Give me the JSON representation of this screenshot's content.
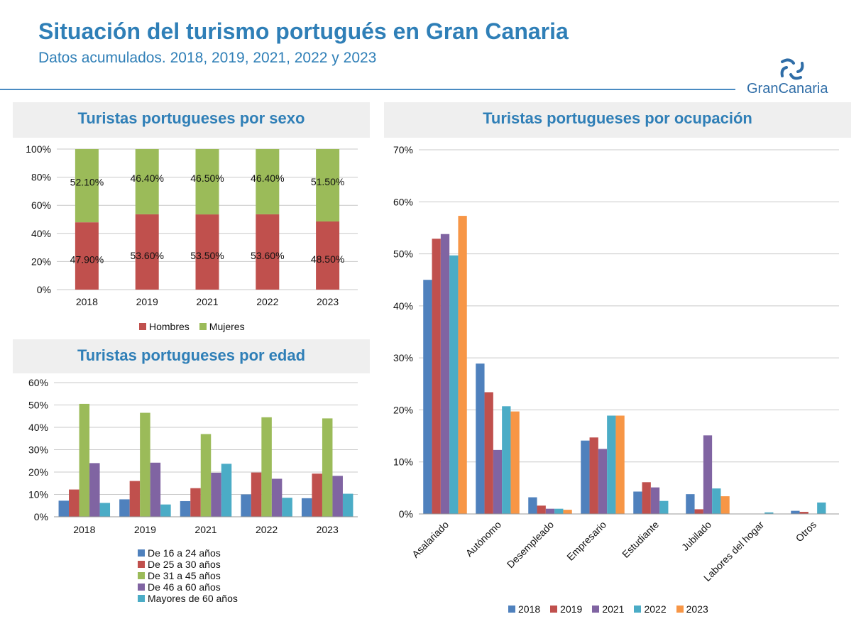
{
  "header": {
    "title": "Situación del turismo portugués en Gran Canaria",
    "subtitle": "Datos acumulados. 2018, 2019, 2021, 2022 y 2023",
    "logo_text": "GranCanaria"
  },
  "colors": {
    "accent": "#2f7fb7",
    "hombres": "#c0504d",
    "mujeres": "#9bbb59",
    "s2018": "#4f81bd",
    "s2019": "#c0504d",
    "s2021": "#8064a2",
    "s2022": "#4bacc6",
    "s2023": "#f79646"
  },
  "chart_data": [
    {
      "id": "sexo",
      "type": "bar",
      "stacked": true,
      "title": "Turistas portugueses por sexo",
      "categories": [
        "2018",
        "2019",
        "2021",
        "2022",
        "2023"
      ],
      "series": [
        {
          "name": "Hombres",
          "values": [
            47.9,
            53.6,
            53.5,
            53.6,
            48.5
          ],
          "labels": [
            "47.90%",
            "53.60%",
            "53.50%",
            "53.60%",
            "48.50%"
          ]
        },
        {
          "name": "Mujeres",
          "values": [
            52.1,
            46.4,
            46.5,
            46.4,
            51.5
          ],
          "labels": [
            "52.10%",
            "46.40%",
            "46.50%",
            "46.40%",
            "51.50%"
          ]
        }
      ],
      "ylim": [
        0,
        100
      ],
      "yticks": [
        "0%",
        "20%",
        "40%",
        "60%",
        "80%",
        "100%"
      ],
      "legend": "bottom"
    },
    {
      "id": "edad",
      "type": "bar",
      "title": "Turistas portugueses por edad",
      "categories": [
        "2018",
        "2019",
        "2021",
        "2022",
        "2023"
      ],
      "series": [
        {
          "name": "De 16 a 24 años",
          "values": [
            7.2,
            7.8,
            7.0,
            10.0,
            8.3
          ]
        },
        {
          "name": "De 25 a 30 años",
          "values": [
            12.2,
            16.0,
            12.8,
            19.8,
            19.3
          ]
        },
        {
          "name": "De 31 a 45 años",
          "values": [
            50.5,
            46.5,
            37.0,
            44.5,
            44.0
          ]
        },
        {
          "name": "De 46 a 60 años",
          "values": [
            24.0,
            24.2,
            19.7,
            17.0,
            18.3
          ]
        },
        {
          "name": "Mayores de 60 años",
          "values": [
            6.2,
            5.5,
            23.7,
            8.5,
            10.3
          ]
        }
      ],
      "ylim": [
        0,
        60
      ],
      "yticks": [
        "0%",
        "10%",
        "20%",
        "30%",
        "40%",
        "50%",
        "60%"
      ],
      "legend": "bottom"
    },
    {
      "id": "ocupacion",
      "type": "bar",
      "title": "Turistas portugueses por ocupación",
      "categories": [
        "Asalariado",
        "Autónomo",
        "Desempleado",
        "Empresario",
        "Estudiante",
        "Jubilado",
        "Labores del hogar",
        "Otros"
      ],
      "series": [
        {
          "name": "2018",
          "values": [
            45.0,
            28.9,
            3.2,
            14.1,
            4.3,
            3.8,
            0.0,
            0.6
          ]
        },
        {
          "name": "2019",
          "values": [
            52.9,
            23.4,
            1.6,
            14.7,
            6.1,
            0.9,
            0.0,
            0.4
          ]
        },
        {
          "name": "2021",
          "values": [
            53.8,
            12.3,
            1.0,
            12.5,
            5.1,
            15.1,
            0.0,
            0.0
          ]
        },
        {
          "name": "2022",
          "values": [
            49.7,
            20.7,
            1.0,
            18.9,
            2.5,
            4.9,
            0.3,
            2.2
          ]
        },
        {
          "name": "2023",
          "values": [
            57.3,
            19.7,
            0.8,
            18.9,
            0.0,
            3.4,
            0.0,
            0.0
          ]
        }
      ],
      "ylim": [
        0,
        70
      ],
      "yticks": [
        "0%",
        "10%",
        "20%",
        "30%",
        "40%",
        "50%",
        "60%",
        "70%"
      ],
      "legend": "bottom"
    }
  ]
}
